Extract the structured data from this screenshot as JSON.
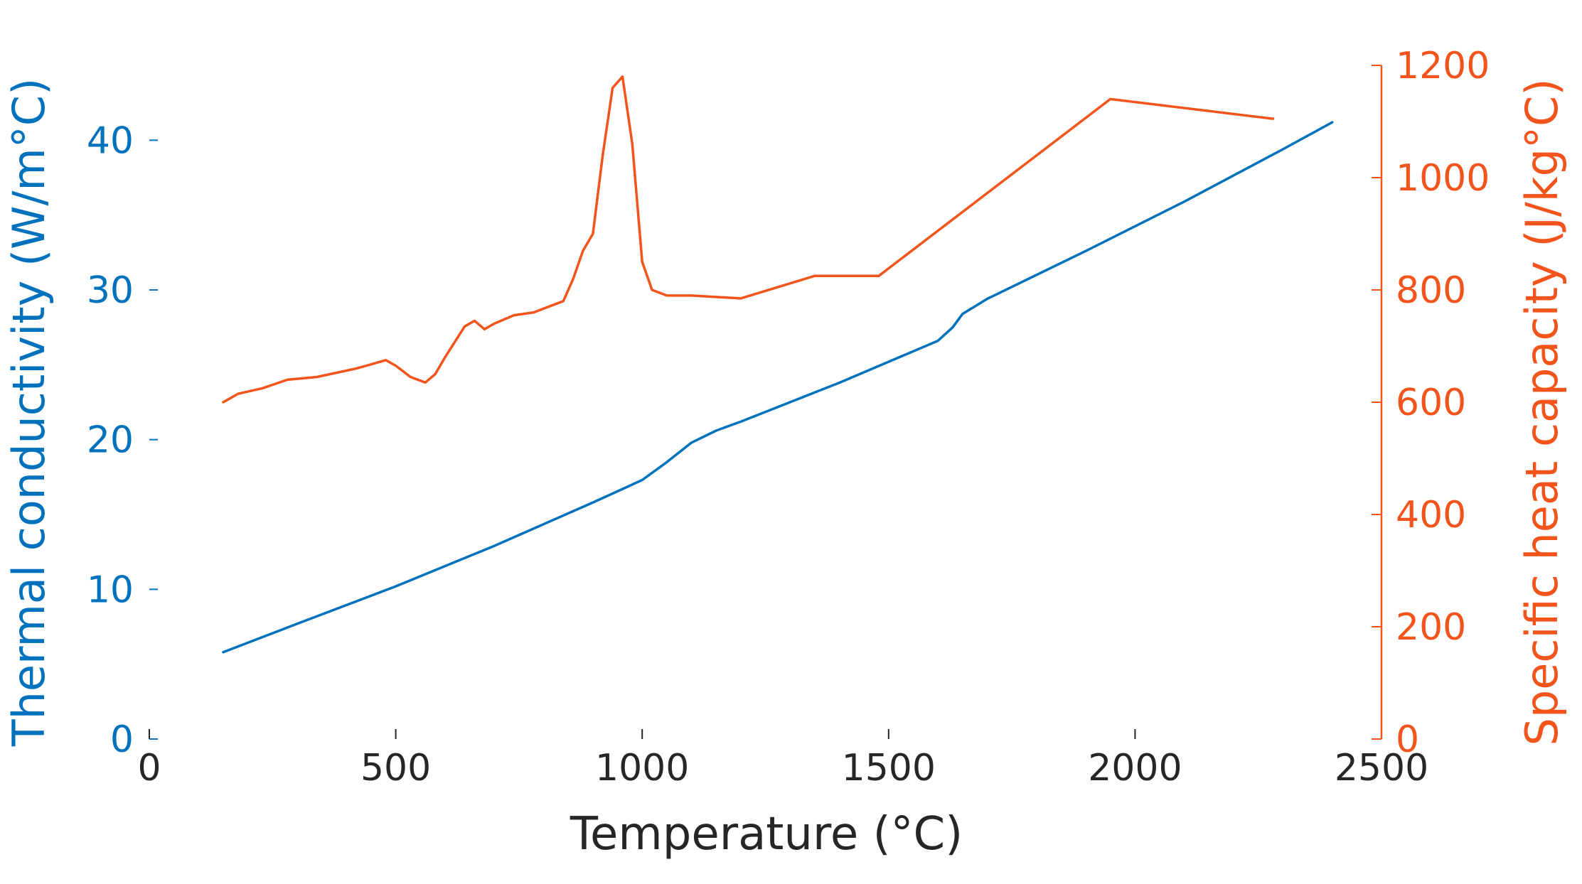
{
  "colors": {
    "left_axis": "#0072BD",
    "right_axis": "#F2541B",
    "x_axis": "#262626"
  },
  "chart_data": {
    "type": "line",
    "title": "",
    "xlabel": "Temperature (°C)",
    "xlim": [
      0,
      2500
    ],
    "x_ticks": [
      0,
      500,
      1000,
      1500,
      2000,
      2500
    ],
    "grid": false,
    "y_left": {
      "label": "Thermal conductivity (W/m°C)",
      "lim": [
        0,
        45
      ],
      "ticks": [
        0,
        10,
        20,
        30,
        40
      ]
    },
    "y_right": {
      "label": "Specific heat capacity (J/kg°C)",
      "lim": [
        0,
        1200
      ],
      "ticks": [
        0,
        200,
        400,
        600,
        800,
        1000,
        1200
      ]
    },
    "series": [
      {
        "name": "Thermal conductivity",
        "axis": "left",
        "x": [
          150,
          300,
          500,
          700,
          900,
          1000,
          1050,
          1100,
          1150,
          1200,
          1400,
          1600,
          1630,
          1650,
          1700,
          1900,
          2100,
          2300,
          2400
        ],
        "y": [
          5.8,
          7.7,
          10.2,
          12.9,
          15.8,
          17.3,
          18.5,
          19.8,
          20.6,
          21.2,
          23.8,
          26.6,
          27.5,
          28.4,
          29.4,
          32.6,
          35.9,
          39.4,
          41.2
        ]
      },
      {
        "name": "Specific heat capacity",
        "axis": "right",
        "x": [
          150,
          180,
          230,
          280,
          340,
          420,
          480,
          500,
          530,
          560,
          580,
          600,
          640,
          660,
          680,
          700,
          740,
          780,
          840,
          860,
          880,
          900,
          920,
          940,
          960,
          980,
          1000,
          1020,
          1050,
          1100,
          1200,
          1350,
          1480,
          1950,
          2280
        ],
        "y": [
          600,
          615,
          625,
          640,
          645,
          660,
          675,
          665,
          645,
          635,
          650,
          680,
          735,
          745,
          730,
          740,
          755,
          760,
          780,
          820,
          870,
          900,
          1040,
          1160,
          1180,
          1060,
          850,
          800,
          790,
          790,
          785,
          825,
          825,
          1140,
          1105
        ]
      }
    ]
  }
}
